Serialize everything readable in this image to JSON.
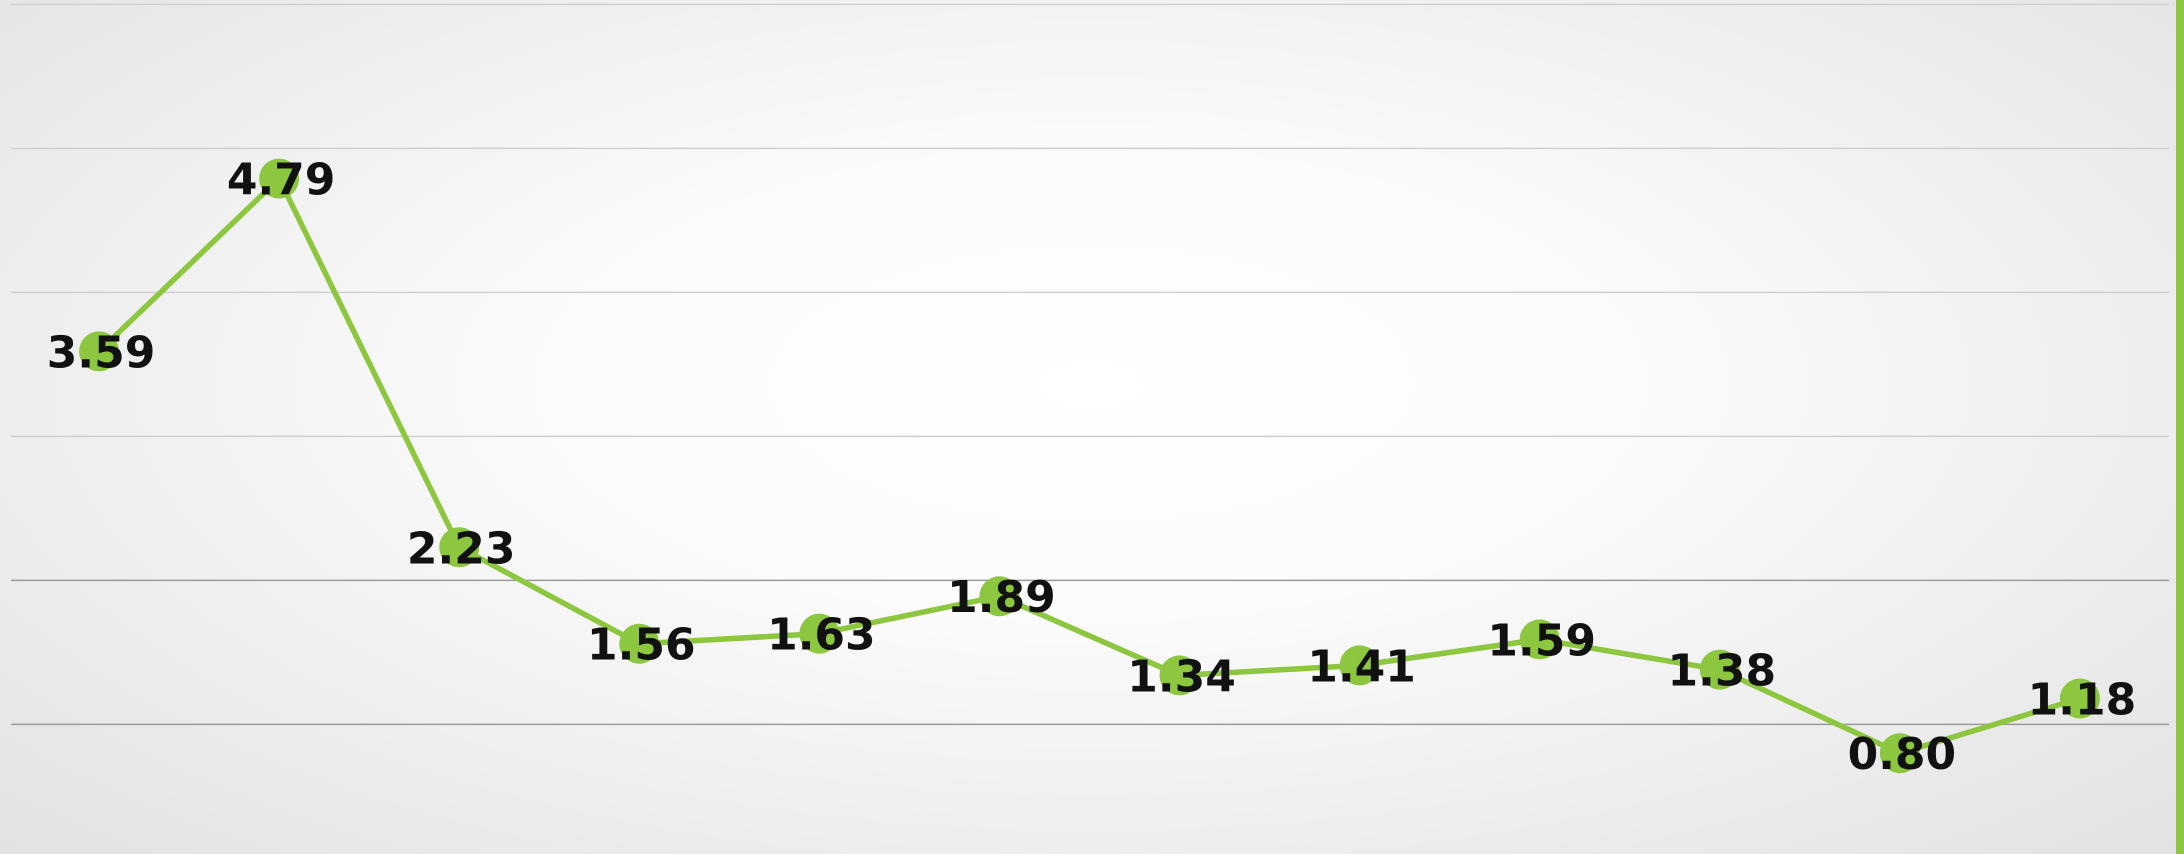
{
  "chart_data": {
    "type": "line",
    "categories": [
      null,
      null,
      null,
      null,
      null,
      null,
      null,
      null,
      null,
      null,
      null,
      null
    ],
    "values": [
      3.59,
      4.79,
      2.23,
      1.56,
      1.63,
      1.89,
      1.34,
      1.41,
      1.59,
      1.38,
      0.8,
      1.18
    ],
    "value_labels": [
      "3.59",
      "4.79",
      "2.23",
      "1.56",
      "1.63",
      "1.89",
      "1.34",
      "1.41",
      "1.59",
      "1.38",
      "0.80",
      "1.18"
    ],
    "color": "#8dc63f",
    "ylim": [
      0.1,
      6.03
    ],
    "yticks": [
      1,
      2,
      3,
      4,
      5,
      6
    ],
    "grid": true
  }
}
